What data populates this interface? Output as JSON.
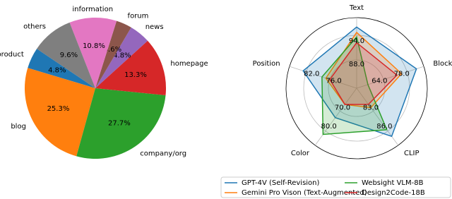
{
  "chart_data": [
    {
      "type": "pie",
      "categories": [
        "product",
        "blog",
        "company/org",
        "homepage",
        "news",
        "forum",
        "information",
        "others"
      ],
      "values": [
        4.8,
        25.3,
        27.7,
        13.3,
        4.8,
        3.6,
        10.8,
        9.6
      ],
      "value_labels": [
        "4.8%",
        "25.3%",
        "27.7%",
        "13.3%",
        "4.8%",
        "3.6%",
        "10.8%",
        "9.6%"
      ],
      "colors": [
        "#1f77b4",
        "#ff7f0e",
        "#2ca02c",
        "#d62728",
        "#9467bd",
        "#8c564b",
        "#e377c2",
        "#7f7f7f"
      ]
    },
    {
      "type": "radar",
      "axes": [
        {
          "name": "Text",
          "ticks": [
            {
              "value": 88,
              "label": "88.0"
            },
            {
              "value": 94,
              "label": "94.0"
            }
          ]
        },
        {
          "name": "Block-Match",
          "ticks": [
            {
              "value": 64,
              "label": "64.0"
            },
            {
              "value": 78,
              "label": "78.0"
            }
          ]
        },
        {
          "name": "CLIP",
          "ticks": [
            {
              "value": 83,
              "label": "83.0"
            },
            {
              "value": 86,
              "label": "86.0"
            }
          ]
        },
        {
          "name": "Color",
          "ticks": [
            {
              "value": 70,
              "label": "70.0"
            },
            {
              "value": 80,
              "label": "80.0"
            }
          ]
        },
        {
          "name": "Position",
          "ticks": [
            {
              "value": 76,
              "label": "76.0"
            },
            {
              "value": 82,
              "label": "82.0"
            }
          ]
        }
      ],
      "series": [
        {
          "name": "GPT-4V (Self-Revision)",
          "color": "#1f77b4",
          "values": [
            96,
            83.6,
            86.8,
            73.3,
            82.8
          ]
        },
        {
          "name": "Gemini Pro Vison (Text-Augmented)",
          "color": "#ff7f0e",
          "values": [
            94.7,
            74.7,
            82.5,
            66.7,
            77
          ]
        },
        {
          "name": "Websight VLM-8B",
          "color": "#2ca02c",
          "values": [
            93.6,
            54.7,
            85.8,
            81.7,
            78
          ]
        },
        {
          "name": "Design2Code-18B",
          "color": "#d62728",
          "values": [
            92.2,
            72,
            82,
            66.7,
            76
          ]
        }
      ]
    }
  ]
}
